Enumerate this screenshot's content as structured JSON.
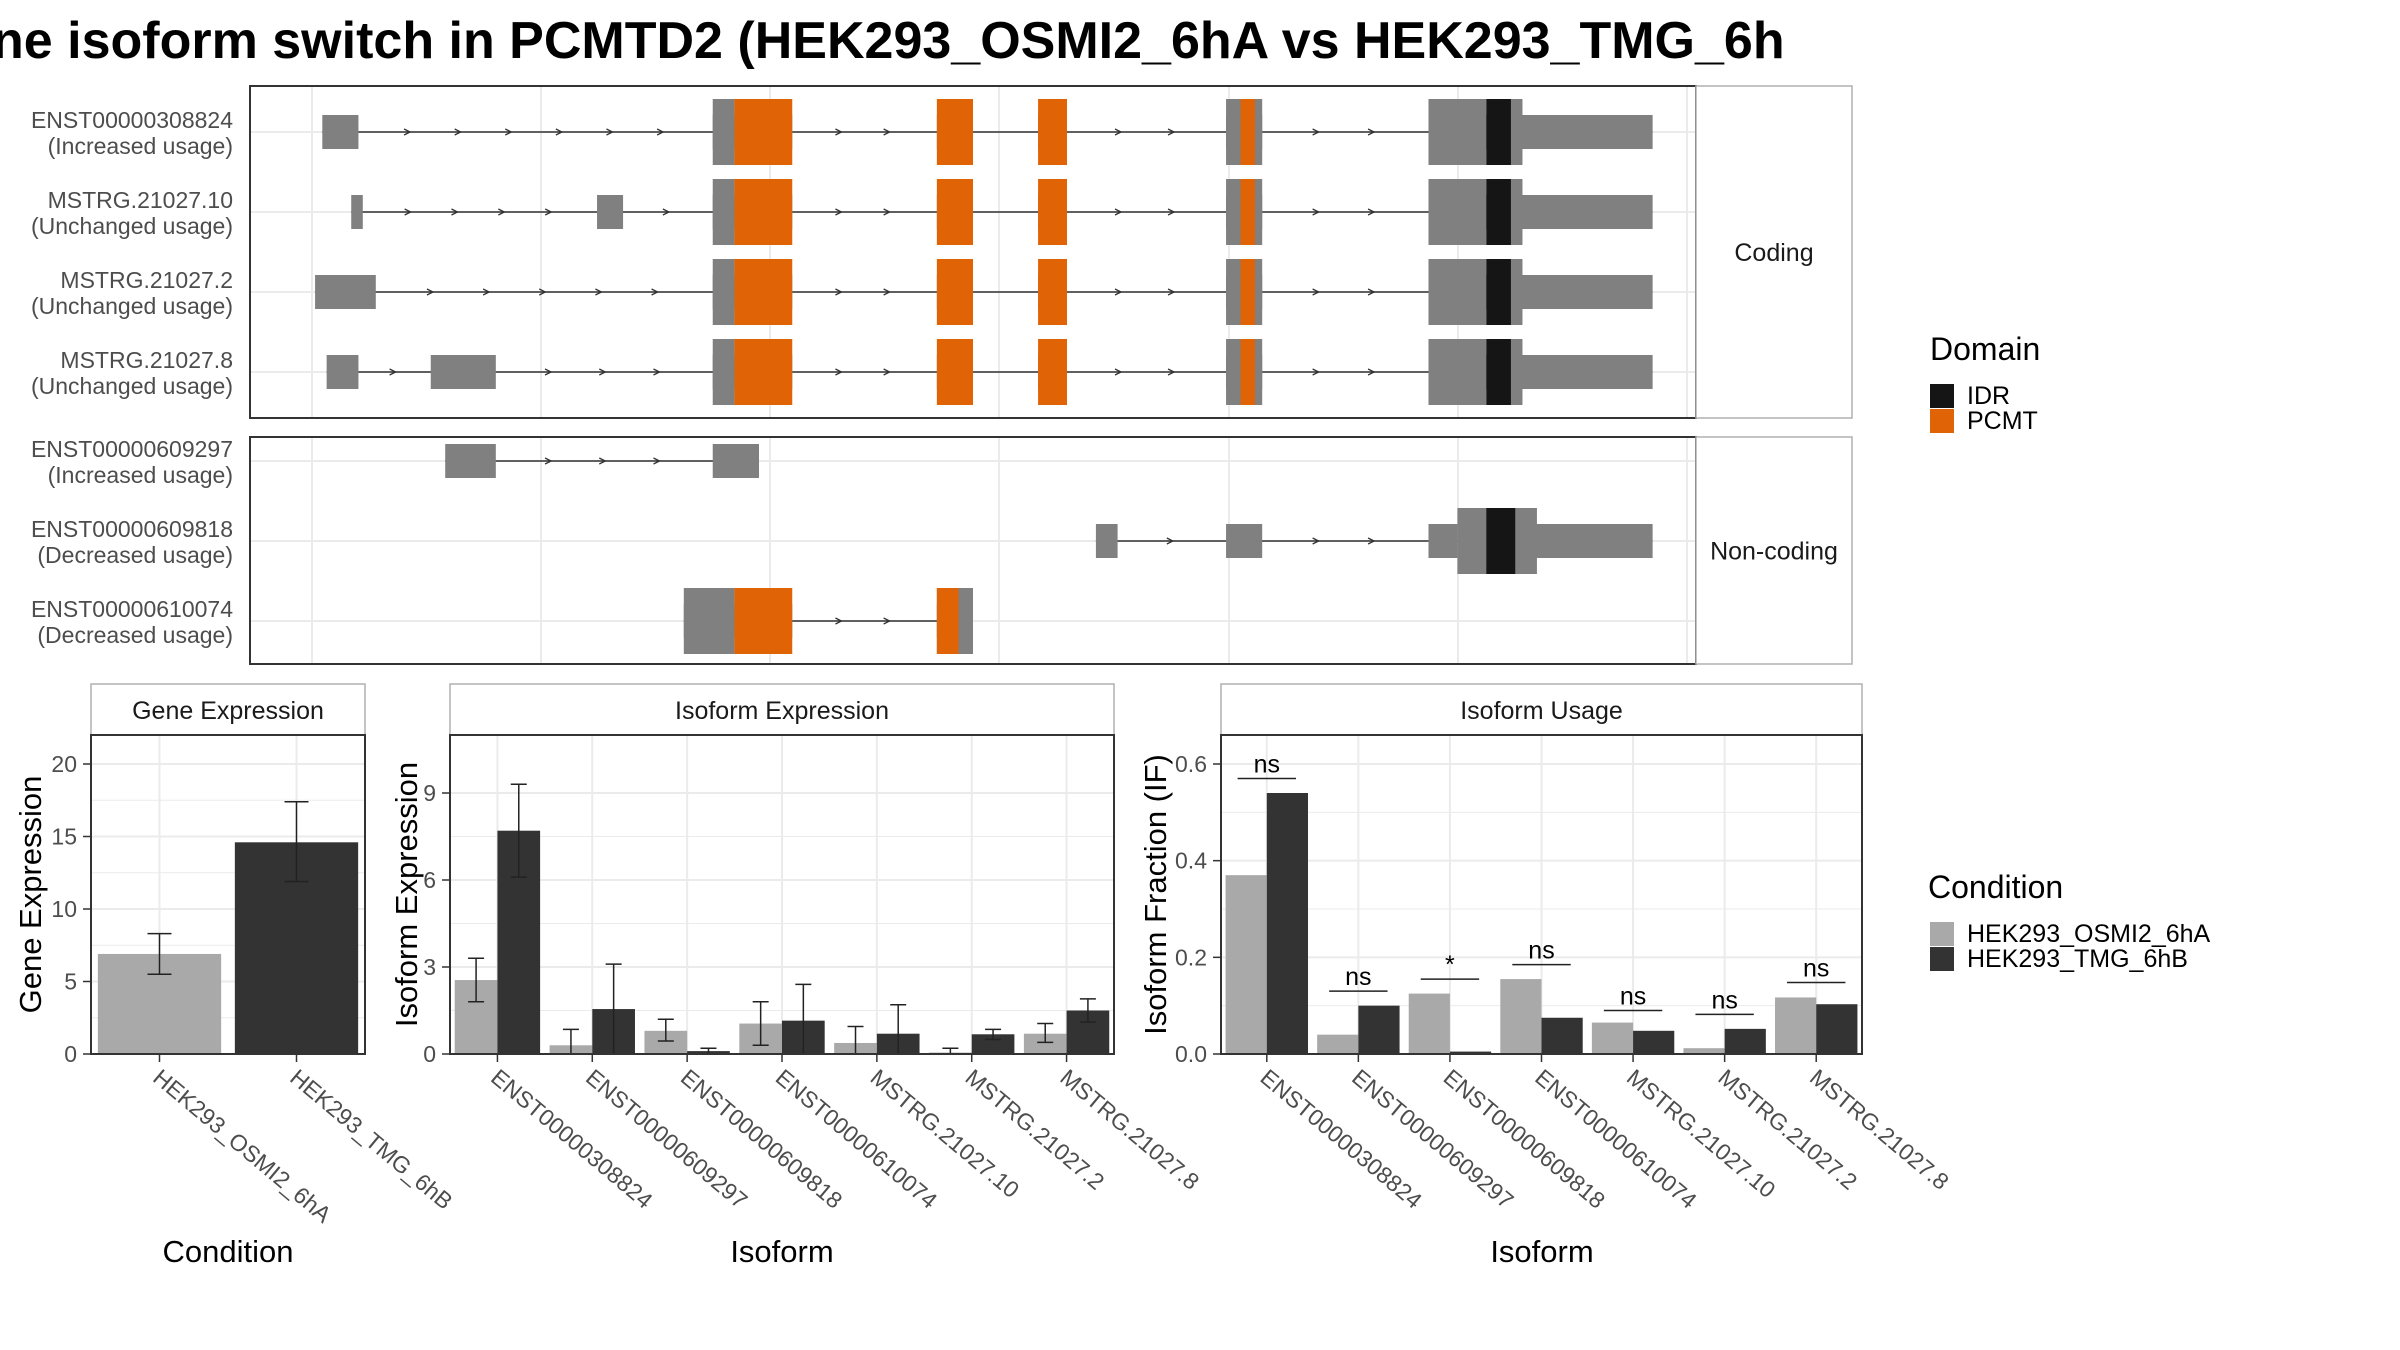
{
  "title": "ne isoform switch in PCMTD2 (HEK293_OSMI2_6hA vs HEK293_TMG_6h",
  "colors": {
    "exon": "#808080",
    "idr": "#151515",
    "pcmt": "#E06406",
    "cond_a": "#A9A9A9",
    "cond_b": "#333333",
    "panel_border": "#333333",
    "strip_border": "#b0b0b0",
    "grid": "#ebebeb"
  },
  "structure": {
    "x_range": [
      0,
      100
    ],
    "facets": [
      {
        "label": "Coding",
        "transcripts": [
          {
            "id": "ENST00000308824",
            "usage": "(Increased usage)",
            "exons": [
              [
                5,
                7.5
              ],
              [
                32,
                33.5
              ],
              [
                33.5,
                37.5
              ],
              [
                47.5,
                50
              ],
              [
                54.5,
                56.5
              ],
              [
                67.5,
                69
              ],
              [
                69,
                70
              ],
              [
                81.5,
                85
              ],
              [
                85,
                86.5
              ],
              [
                86.5,
                88
              ],
              [
                88,
                97
              ]
            ],
            "cds": [
              [
                32,
                33.5
              ],
              [
                67.5,
                70
              ],
              [
                81.5,
                85.5
              ],
              [
                86.5,
                88
              ]
            ],
            "domains": [
              {
                "type": "PCMT",
                "segs": [
                  [
                    33.5,
                    37.5
                  ],
                  [
                    47.5,
                    50
                  ],
                  [
                    54.5,
                    56.5
                  ],
                  [
                    68.5,
                    69.5
                  ]
                ]
              },
              {
                "type": "IDR",
                "segs": [
                  [
                    85.5,
                    87.2
                  ]
                ]
              }
            ]
          },
          {
            "id": "MSTRG.21027.10",
            "usage": "(Unchanged usage)",
            "exons": [
              [
                7,
                7.8
              ],
              [
                24,
                25.8
              ],
              [
                32,
                33.5
              ],
              [
                33.5,
                37.5
              ],
              [
                47.5,
                50
              ],
              [
                54.5,
                56.5
              ],
              [
                67.5,
                70
              ],
              [
                81.5,
                85
              ],
              [
                85,
                86.5
              ],
              [
                86.5,
                88
              ],
              [
                88,
                97
              ]
            ],
            "cds": [
              [
                32,
                33.5
              ],
              [
                67.5,
                70
              ],
              [
                81.5,
                85.5
              ],
              [
                86.5,
                88
              ]
            ],
            "domains": [
              {
                "type": "PCMT",
                "segs": [
                  [
                    33.5,
                    37.5
                  ],
                  [
                    47.5,
                    50
                  ],
                  [
                    54.5,
                    56.5
                  ],
                  [
                    68.5,
                    69.5
                  ]
                ]
              },
              {
                "type": "IDR",
                "segs": [
                  [
                    85.5,
                    87.2
                  ]
                ]
              }
            ]
          },
          {
            "id": "MSTRG.21027.2",
            "usage": "(Unchanged usage)",
            "exons": [
              [
                4.5,
                8.7
              ],
              [
                32,
                33.5
              ],
              [
                33.5,
                37.5
              ],
              [
                47.5,
                50
              ],
              [
                54.5,
                56.5
              ],
              [
                67.5,
                70
              ],
              [
                81.5,
                85
              ],
              [
                85,
                86.5
              ],
              [
                86.5,
                88
              ],
              [
                88,
                97
              ]
            ],
            "cds": [
              [
                32,
                33.5
              ],
              [
                67.5,
                70
              ],
              [
                81.5,
                85.5
              ],
              [
                86.5,
                88
              ]
            ],
            "domains": [
              {
                "type": "PCMT",
                "segs": [
                  [
                    33.5,
                    37.5
                  ],
                  [
                    47.5,
                    50
                  ],
                  [
                    54.5,
                    56.5
                  ],
                  [
                    68.5,
                    69.5
                  ]
                ]
              },
              {
                "type": "IDR",
                "segs": [
                  [
                    85.5,
                    87.2
                  ]
                ]
              }
            ]
          },
          {
            "id": "MSTRG.21027.8",
            "usage": "(Unchanged usage)",
            "exons": [
              [
                5.3,
                7.5
              ],
              [
                12.5,
                17
              ],
              [
                32,
                33.5
              ],
              [
                33.5,
                37.5
              ],
              [
                47.5,
                50
              ],
              [
                54.5,
                56.5
              ],
              [
                67.5,
                70
              ],
              [
                81.5,
                85
              ],
              [
                85,
                86.5
              ],
              [
                86.5,
                88
              ],
              [
                88,
                97
              ]
            ],
            "cds": [
              [
                32,
                33.5
              ],
              [
                67.5,
                70
              ],
              [
                81.5,
                85.5
              ],
              [
                86.5,
                88
              ]
            ],
            "domains": [
              {
                "type": "PCMT",
                "segs": [
                  [
                    33.5,
                    37.5
                  ],
                  [
                    47.5,
                    50
                  ],
                  [
                    54.5,
                    56.5
                  ],
                  [
                    68.5,
                    69.5
                  ]
                ]
              },
              {
                "type": "IDR",
                "segs": [
                  [
                    85.5,
                    87.2
                  ]
                ]
              }
            ]
          }
        ]
      },
      {
        "label": "Non-coding",
        "transcripts": [
          {
            "id": "ENST00000609297",
            "usage": "(Increased usage)",
            "exons": [
              [
                13.5,
                17
              ],
              [
                32,
                35.2
              ]
            ],
            "cds": [],
            "domains": []
          },
          {
            "id": "ENST00000609818",
            "usage": "(Decreased usage)",
            "exons": [
              [
                58.5,
                60
              ],
              [
                67.5,
                70
              ],
              [
                81.5,
                83.5
              ],
              [
                83.5,
                97
              ]
            ],
            "cds": [
              [
                83.5,
                89
              ]
            ],
            "domains": [
              {
                "type": "IDR",
                "segs": [
                  [
                    85.5,
                    87.5
                  ]
                ]
              }
            ]
          },
          {
            "id": "ENST00000610074",
            "usage": "(Decreased usage)",
            "exons": [
              [
                30,
                33.5
              ],
              [
                33.5,
                37.5
              ],
              [
                47.5,
                50
              ]
            ],
            "cds": [
              [
                30,
                33.5
              ],
              [
                47.5,
                50
              ]
            ],
            "domains": [
              {
                "type": "PCMT",
                "segs": [
                  [
                    33.5,
                    37.5
                  ],
                  [
                    47.5,
                    49
                  ]
                ]
              }
            ]
          }
        ]
      }
    ]
  },
  "domain_legend": {
    "title": "Domain",
    "items": [
      {
        "label": "IDR",
        "key": "idr"
      },
      {
        "label": "PCMT",
        "key": "pcmt"
      }
    ]
  },
  "condition_legend": {
    "title": "Condition",
    "items": [
      {
        "label": "HEK293_OSMI2_6hA",
        "key": "cond_a"
      },
      {
        "label": "HEK293_TMG_6hB",
        "key": "cond_b"
      }
    ]
  },
  "chart_data": [
    {
      "type": "bar",
      "title": "Gene Expression",
      "xlabel": "Condition",
      "ylabel": "Gene Expression",
      "ylim": [
        0,
        22
      ],
      "yticks": [
        0,
        5,
        10,
        15,
        20
      ],
      "categories": [
        "HEK293_OSMI2_6hA",
        "HEK293_TMG_6hB"
      ],
      "values": [
        6.9,
        14.6
      ],
      "errors": [
        [
          5.5,
          8.3
        ],
        [
          11.9,
          17.4
        ]
      ],
      "bar_colors": [
        "cond_a",
        "cond_b"
      ]
    },
    {
      "type": "bar",
      "title": "Isoform Expression",
      "xlabel": "Isoform",
      "ylabel": "Isoform Expression",
      "ylim": [
        0,
        11
      ],
      "yticks": [
        0,
        3,
        6,
        9
      ],
      "categories": [
        "ENST00000308824",
        "ENST00000609297",
        "ENST00000609818",
        "ENST00000610074",
        "MSTRG.21027.10",
        "MSTRG.21027.2",
        "MSTRG.21027.8"
      ],
      "series": [
        {
          "name": "HEK293_OSMI2_6hA",
          "values": [
            2.55,
            0.3,
            0.8,
            1.05,
            0.38,
            0.05,
            0.7
          ],
          "errors": [
            [
              1.8,
              3.3
            ],
            [
              0.0,
              0.85
            ],
            [
              0.45,
              1.2
            ],
            [
              0.3,
              1.8
            ],
            [
              0.0,
              0.95
            ],
            [
              0.0,
              0.2
            ],
            [
              0.4,
              1.05
            ]
          ]
        },
        {
          "name": "HEK293_TMG_6hB",
          "values": [
            7.7,
            1.55,
            0.1,
            1.15,
            0.7,
            0.68,
            1.5
          ],
          "errors": [
            [
              6.1,
              9.3
            ],
            [
              0.0,
              3.1
            ],
            [
              0.0,
              0.2
            ],
            [
              0.0,
              2.4
            ],
            [
              0.0,
              1.7
            ],
            [
              0.5,
              0.85
            ],
            [
              1.1,
              1.9
            ]
          ]
        }
      ]
    },
    {
      "type": "bar",
      "title": "Isoform Usage",
      "xlabel": "Isoform",
      "ylabel": "Isoform Fraction (IF)",
      "ylim": [
        0,
        0.66
      ],
      "yticks": [
        0.0,
        0.2,
        0.4,
        0.6
      ],
      "ytick_labels": [
        "0.0",
        "0.2",
        "0.4",
        "0.6"
      ],
      "categories": [
        "ENST00000308824",
        "ENST00000609297",
        "ENST00000609818",
        "ENST00000610074",
        "MSTRG.21027.10",
        "MSTRG.21027.2",
        "MSTRG.21027.8"
      ],
      "series": [
        {
          "name": "HEK293_OSMI2_6hA",
          "values": [
            0.37,
            0.04,
            0.125,
            0.155,
            0.065,
            0.012,
            0.117
          ]
        },
        {
          "name": "HEK293_TMG_6hB",
          "values": [
            0.54,
            0.1,
            0.005,
            0.075,
            0.048,
            0.052,
            0.103
          ]
        }
      ],
      "significance": [
        "ns",
        "ns",
        "*",
        "ns",
        "ns",
        "ns",
        "ns"
      ],
      "sig_levels": [
        0.57,
        0.13,
        0.155,
        0.185,
        0.09,
        0.082,
        0.148
      ]
    }
  ]
}
